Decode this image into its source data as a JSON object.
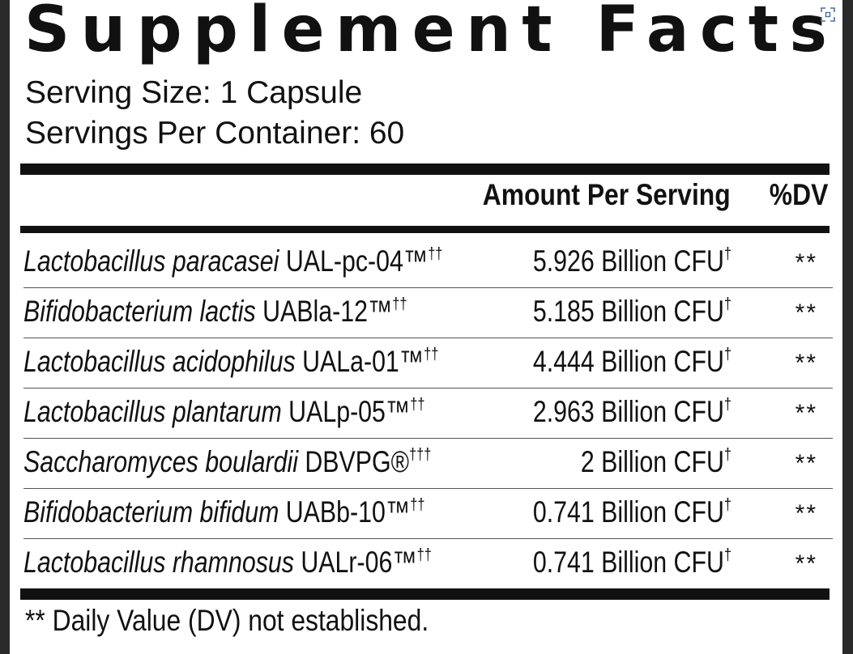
{
  "panel": {
    "title": "Supplement Facts",
    "expand_icon": "expand-icon",
    "serving_size": "Serving Size: 1 Capsule",
    "servings_per_container": "Servings Per Container: 60"
  },
  "table": {
    "headers": {
      "amount": "Amount Per Serving",
      "dv": "%DV"
    },
    "rows": [
      {
        "sci": "Lactobacillus paracasei",
        "strain": " UAL-pc-04™",
        "mark": "††",
        "amount": "5.926 Billion CFU",
        "amount_mark": "†",
        "dv": "**"
      },
      {
        "sci": "Bifidobacterium lactis",
        "strain": " UABla-12™",
        "mark": "††",
        "amount": "5.185 Billion CFU",
        "amount_mark": "†",
        "dv": "**"
      },
      {
        "sci": "Lactobacillus acidophilus",
        "strain": " UALa-01™",
        "mark": "††",
        "amount": "4.444 Billion CFU",
        "amount_mark": "†",
        "dv": "**"
      },
      {
        "sci": "Lactobacillus plantarum",
        "strain": " UALp-05™",
        "mark": "††",
        "amount": "2.963 Billion CFU",
        "amount_mark": "†",
        "dv": "**"
      },
      {
        "sci": "Saccharomyces boulardii",
        "strain": " DBVPG®",
        "mark": "†††",
        "amount": "2 Billion CFU",
        "amount_mark": "†",
        "dv": "**"
      },
      {
        "sci": "Bifidobacterium bifidum",
        "strain": " UABb-10™",
        "mark": "††",
        "amount": "0.741 Billion CFU",
        "amount_mark": "†",
        "dv": "**"
      },
      {
        "sci": "Lactobacillus rhamnosus",
        "strain": " UALr-06™",
        "mark": "††",
        "amount": "0.741 Billion CFU",
        "amount_mark": "†",
        "dv": "**"
      }
    ]
  },
  "footnote": "** Daily Value (DV) not established."
}
